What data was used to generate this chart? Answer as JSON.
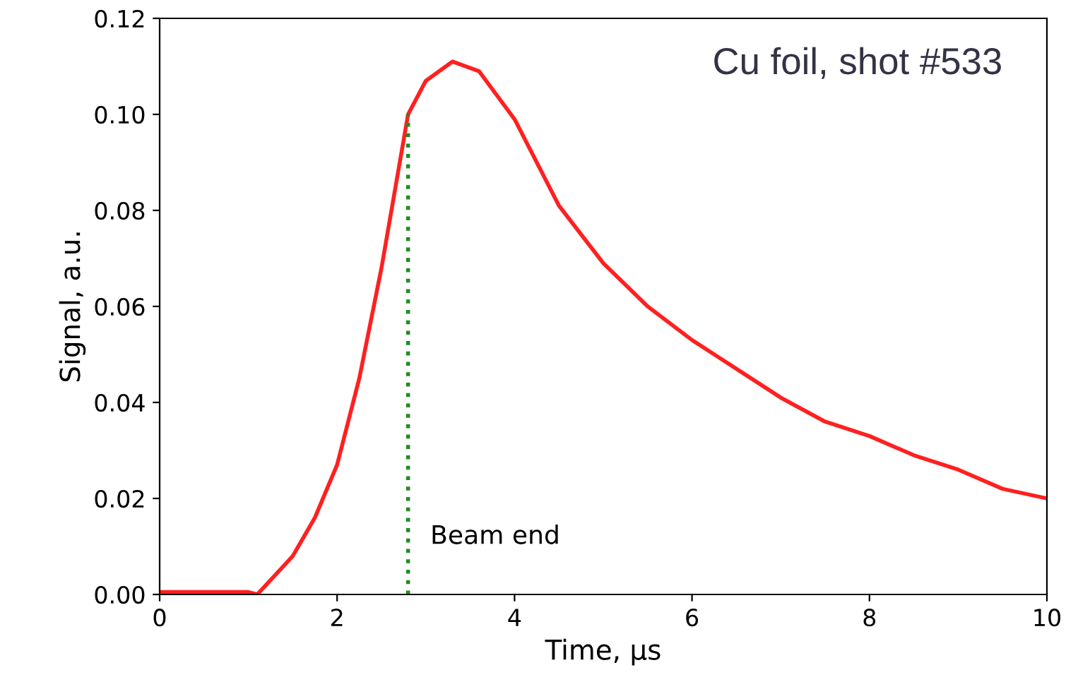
{
  "chart_data": {
    "type": "line",
    "xlabel": "Time, μs",
    "ylabel": "Signal, a.u.",
    "xlim": [
      0,
      10
    ],
    "ylim": [
      0,
      0.12
    ],
    "xticks": [
      0,
      2,
      4,
      6,
      8,
      10
    ],
    "yticks": [
      {
        "value": 0,
        "label": "0.00"
      },
      {
        "value": 0.02,
        "label": "0.02"
      },
      {
        "value": 0.04,
        "label": "0.04"
      },
      {
        "value": 0.06,
        "label": "0.06"
      },
      {
        "value": 0.08,
        "label": "0.08"
      },
      {
        "value": 0.1,
        "label": "0.10"
      },
      {
        "value": 0.12,
        "label": "0.12"
      }
    ],
    "grid": false,
    "legend": false,
    "series": [
      {
        "color": "#ff2020",
        "line_style": "solid",
        "x": [
          0,
          0.5,
          1.0,
          1.1,
          1.3,
          1.5,
          1.75,
          2.0,
          2.25,
          2.5,
          2.8,
          3.0,
          3.3,
          3.6,
          4.0,
          4.5,
          5.0,
          5.5,
          6.0,
          6.5,
          7.0,
          7.5,
          8.0,
          8.5,
          9.0,
          9.5,
          10
        ],
        "values": [
          0.0005,
          0.0005,
          0.0005,
          0.0,
          0.004,
          0.008,
          0.016,
          0.027,
          0.045,
          0.068,
          0.1,
          0.107,
          0.111,
          0.109,
          0.099,
          0.081,
          0.069,
          0.06,
          0.053,
          0.047,
          0.041,
          0.036,
          0.033,
          0.029,
          0.026,
          0.022,
          0.02
        ]
      },
      {
        "color": "#228b22",
        "line_style": "dotted",
        "x": [
          2.8,
          2.8
        ],
        "values": [
          0,
          0.1
        ]
      }
    ],
    "annotations": [
      "Beam end",
      "Cu foil, shot #533"
    ]
  }
}
